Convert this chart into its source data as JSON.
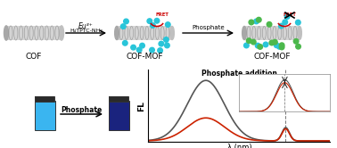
{
  "background_color": "#ffffff",
  "cof_label": "COF",
  "cofmof1_label": "COF-MOF",
  "cofmof2_label": "COF-MOF",
  "arrow1_top": "Eu³⁺",
  "arrow1_bottom": "H₄TPTC-NH₂",
  "arrow2_label": "Phosphate",
  "fret_label": "FRET",
  "phosphate_addition_label": "Phosphate addition",
  "fl_label": "FL",
  "lambda_label": "λ (nm)",
  "cuvette_arrow_label": "Phosphate",
  "cuvette1_color": "#3ab5f0",
  "cuvette2_color": "#1a237e",
  "cuvette_cap_color": "#2a2a2a",
  "cuvette_edge_color": "#333333",
  "tube_body_color": "#d4d4d4",
  "tube_ring_color": "#888888",
  "tube_cap_color": "#b0b0b0",
  "cyan_dot_color": "#29c5d9",
  "green_dot_color": "#4cb84c",
  "fret_arc_color": "#cc0000",
  "arrow_color": "#111111",
  "gray_curve_color": "#555555",
  "red_curve_color": "#cc2200",
  "spec_bg": "#ffffff"
}
